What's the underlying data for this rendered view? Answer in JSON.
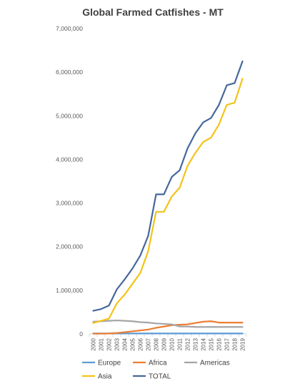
{
  "chart_data": {
    "type": "line",
    "title": "Global Farmed Catfishes - MT",
    "xlabel": "",
    "ylabel": "",
    "x": [
      "2000",
      "2001",
      "2002",
      "2003",
      "2004",
      "2005",
      "2006",
      "2007",
      "2008",
      "2009",
      "2010",
      "2011",
      "2012",
      "2013",
      "2014",
      "2015",
      "2016",
      "2017",
      "2018",
      "2019"
    ],
    "y_ticks": [
      "0",
      "1,000,000",
      "2,000,000",
      "3,000,000",
      "4,000,000",
      "5,000,000",
      "6,000,000",
      "7,000,000"
    ],
    "ylim": [
      0,
      7000000
    ],
    "grid": false,
    "legend_position": "bottom",
    "series": [
      {
        "name": "Europe",
        "color": "#5b9bd5",
        "values": [
          10000,
          10000,
          10000,
          10000,
          10000,
          10000,
          10000,
          10000,
          10000,
          10000,
          10000,
          10000,
          10000,
          10000,
          10000,
          10000,
          10000,
          10000,
          10000,
          10000
        ]
      },
      {
        "name": "Africa",
        "color": "#ed7d31",
        "values": [
          5000,
          5000,
          10000,
          20000,
          40000,
          60000,
          80000,
          100000,
          140000,
          170000,
          200000,
          210000,
          220000,
          250000,
          280000,
          290000,
          260000,
          260000,
          260000,
          260000
        ]
      },
      {
        "name": "Americas",
        "color": "#a5a5a5",
        "values": [
          280000,
          290000,
          300000,
          310000,
          300000,
          290000,
          270000,
          260000,
          240000,
          230000,
          220000,
          170000,
          170000,
          160000,
          160000,
          160000,
          160000,
          160000,
          160000,
          160000
        ]
      },
      {
        "name": "Asia",
        "color": "#f2c318",
        "values": [
          250000,
          300000,
          350000,
          700000,
          900000,
          1150000,
          1400000,
          1900000,
          2800000,
          2800000,
          3150000,
          3350000,
          3850000,
          4150000,
          4400000,
          4500000,
          4800000,
          5250000,
          5300000,
          5850000
        ]
      },
      {
        "name": "TOTAL",
        "color": "#44689c",
        "values": [
          530000,
          570000,
          650000,
          1020000,
          1250000,
          1500000,
          1800000,
          2250000,
          3200000,
          3200000,
          3600000,
          3750000,
          4250000,
          4600000,
          4850000,
          4950000,
          5250000,
          5700000,
          5750000,
          6250000
        ]
      }
    ]
  }
}
